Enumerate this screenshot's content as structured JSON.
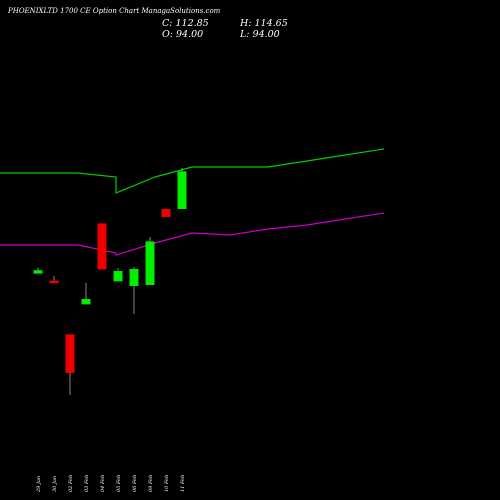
{
  "header": {
    "title": "PHOENIXLTD 1700  CE Option  Chart ManagaSolutions.com",
    "close_label": "C: 112.85",
    "high_label": "H: 114.65",
    "open_label": "O: 94.00",
    "low_label": "L: 94.00"
  },
  "chart_data": {
    "type": "candlestick",
    "title": "PHOENIXLTD 1700  CE Option  Chart ManagaSolutions.com",
    "categories": [
      "29 Jan",
      "30 Jan",
      "02 Feb",
      "03 Feb",
      "04 Feb",
      "05 Feb",
      "06 Feb",
      "09 Feb",
      "10 Feb",
      "11 Feb"
    ],
    "candles": [
      {
        "date": "29 Jan",
        "open": 61.7,
        "close": 63.4,
        "high": 64.7,
        "low": 61.7
      },
      {
        "date": "30 Jan",
        "open": 58.2,
        "close": 56.9,
        "high": 60.5,
        "low": 56.9
      },
      {
        "date": "02 Feb",
        "open": 31.3,
        "close": 12.0,
        "high": 31.3,
        "low": 1.0
      },
      {
        "date": "03 Feb",
        "open": 46.3,
        "close": 49.0,
        "high": 57.2,
        "low": 46.3
      },
      {
        "date": "04 Feb",
        "open": 86.8,
        "close": 63.8,
        "high": 86.8,
        "low": 63.8
      },
      {
        "date": "05 Feb",
        "open": 57.8,
        "close": 63.0,
        "high": 64.3,
        "low": 57.8
      },
      {
        "date": "06 Feb",
        "open": 55.5,
        "close": 64.0,
        "high": 65.0,
        "low": 41.5
      },
      {
        "date": "09 Feb",
        "open": 56.0,
        "close": 77.8,
        "high": 80.0,
        "low": 56.0
      },
      {
        "date": "10 Feb",
        "open": 94.0,
        "close": 90.0,
        "high": 94.0,
        "low": 90.0
      },
      {
        "date": "11 Feb",
        "open": 94.0,
        "close": 112.85,
        "high": 114.65,
        "low": 94.0
      }
    ],
    "series": [
      {
        "values": [
          112.0,
          112.0,
          110.0,
          102.0,
          110.0,
          115.0,
          115.0,
          115.0,
          118.0,
          121.0
        ],
        "color": "#00cc00"
      },
      {
        "values": [
          76.0,
          76.0,
          72.0,
          71.0,
          77.0,
          82.0,
          81.0,
          84.0,
          86.0,
          89.0
        ],
        "color": "#cc00cc"
      }
    ],
    "up_color": "#00ee00",
    "down_color": "#ee0000",
    "background": "#000000",
    "grid": false
  }
}
